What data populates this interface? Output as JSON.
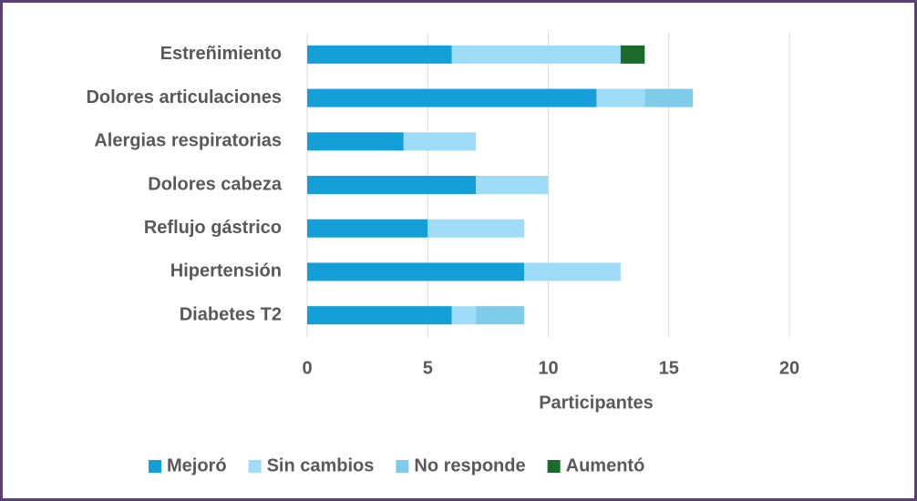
{
  "chart_data": {
    "type": "stacked-barh",
    "categories": [
      "Estreñimiento",
      "Dolores articulaciones",
      "Alergias respiratorias",
      "Dolores cabeza",
      "Reflujo gástrico",
      "Hipertensión",
      "Diabetes T2"
    ],
    "series": [
      {
        "name": "Mejoró",
        "color": "#149fd9",
        "values": [
          6,
          12,
          4,
          7,
          5,
          9,
          6
        ]
      },
      {
        "name": "Sin cambios",
        "color": "#9edcf7",
        "values": [
          7,
          2,
          3,
          3,
          4,
          4,
          1
        ]
      },
      {
        "name": "No responde",
        "color": "#7ecbea",
        "values": [
          0,
          2,
          0,
          0,
          0,
          0,
          2
        ]
      },
      {
        "name": "Aumentó",
        "color": "#1a6b2a",
        "values": [
          1,
          0,
          0,
          0,
          0,
          0,
          0
        ]
      }
    ],
    "xlabel": "Participantes",
    "xlim": [
      0,
      20
    ],
    "xticks": [
      0,
      5,
      10,
      15,
      20
    ],
    "grid": true,
    "legend": "bottom"
  }
}
